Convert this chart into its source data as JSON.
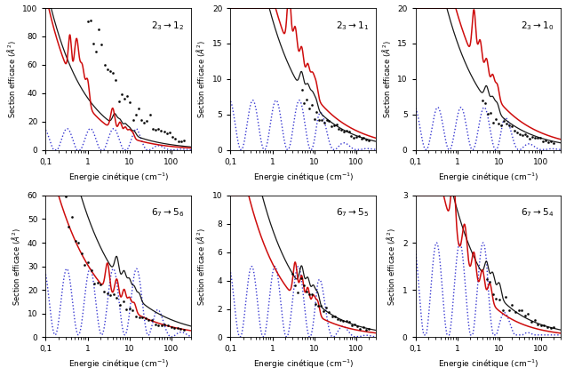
{
  "panels": [
    {
      "title": "$2_3 \\rightarrow 1_2$",
      "ylim": [
        0,
        100
      ],
      "yticks": [
        0,
        20,
        40,
        60,
        80,
        100
      ],
      "ylabel": "Section efficace ($\\AA^2$)"
    },
    {
      "title": "$2_3 \\rightarrow 1_1$",
      "ylim": [
        0,
        20
      ],
      "yticks": [
        0,
        5,
        10,
        15,
        20
      ],
      "ylabel": "Section efficace ($\\AA^2$)"
    },
    {
      "title": "$2_3 \\rightarrow 1_0$",
      "ylim": [
        0,
        20
      ],
      "yticks": [
        0,
        5,
        10,
        15,
        20
      ],
      "ylabel": "Section efficace ($\\AA^2$)"
    },
    {
      "title": "$6_7 \\rightarrow 5_6$",
      "ylim": [
        0,
        60
      ],
      "yticks": [
        0,
        10,
        20,
        30,
        40,
        50,
        60
      ],
      "ylabel": "Section efficace ($\\AA^2$)"
    },
    {
      "title": "$6_7 \\rightarrow 5_5$",
      "ylim": [
        0,
        10
      ],
      "yticks": [
        0,
        2,
        4,
        6,
        8,
        10
      ],
      "ylabel": "Section efficace ($\\AA^2$)"
    },
    {
      "title": "$6_7 \\rightarrow 5_4$",
      "ylim": [
        0,
        3
      ],
      "yticks": [
        0,
        1,
        2,
        3
      ],
      "ylabel": "Section efficace ($\\AA^2$)"
    }
  ],
  "xlabel": "Energie cinétique (cm$^{-1}$)",
  "xlim": [
    0.1,
    300
  ],
  "red": "#cc0000",
  "blue": "#2222cc",
  "black": "#000000"
}
